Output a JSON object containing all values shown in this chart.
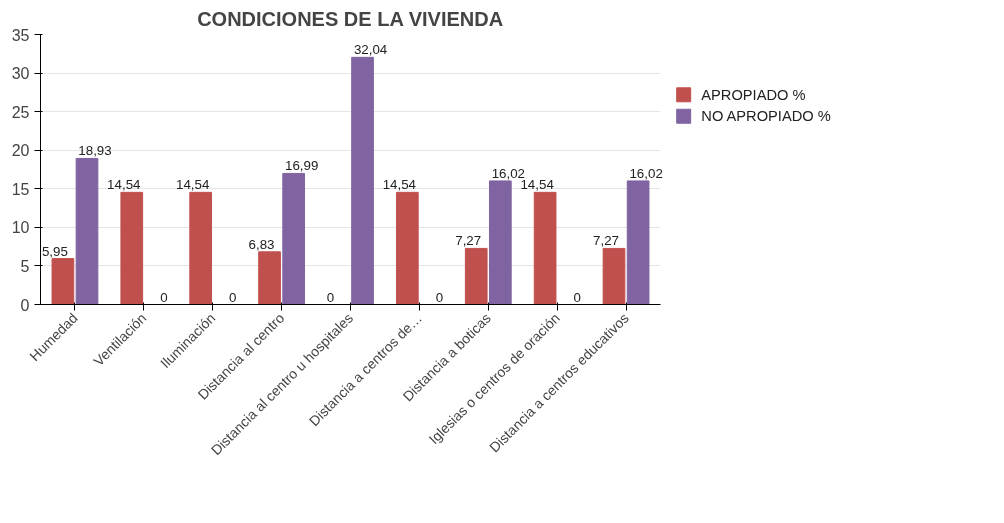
{
  "chart_data": {
    "type": "bar",
    "title": "CONDICIONES DE LA VIVIENDA",
    "categories": [
      "Humedad",
      "Ventilación",
      "Iluminación",
      "Distancia al centro",
      "Distancia al centro u hospitales",
      "Distancia a centros de…",
      "Distancia a boticas",
      "Iglesias o centros de oración",
      "Distancia a centros educativos"
    ],
    "series": [
      {
        "name": "APROPIADO %",
        "color": "#c0504d",
        "values": [
          5.95,
          14.54,
          14.54,
          6.83,
          0,
          14.54,
          7.27,
          14.54,
          7.27
        ],
        "value_labels": [
          "5,95",
          "14,54",
          "14,54",
          "6,83",
          "0",
          "14,54",
          "7,27",
          "14,54",
          "7,27"
        ]
      },
      {
        "name": "NO APROPIADO %",
        "color": "#8064a2",
        "values": [
          18.93,
          0,
          0,
          16.99,
          32.04,
          0,
          16.02,
          0,
          16.02
        ],
        "value_labels": [
          "18,93",
          "0",
          "0",
          "16,99",
          "32,04",
          "0",
          "16,02",
          "0",
          "16,02"
        ]
      }
    ],
    "ylim": [
      0,
      35
    ],
    "yticks": [
      0,
      5,
      10,
      15,
      20,
      25,
      30,
      35
    ],
    "grid": "y",
    "legend": "right"
  }
}
